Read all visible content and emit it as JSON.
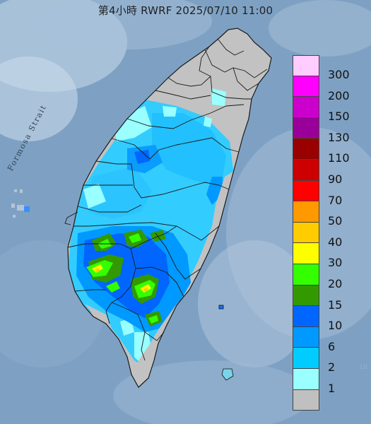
{
  "title": "第4小時  RWRF 2025/07/10 11:00",
  "strait_label": "Formosa Strait",
  "legend": {
    "colors": [
      "#ffccff",
      "#ff00ff",
      "#cc00cc",
      "#990099",
      "#990000",
      "#cc0000",
      "#ff0000",
      "#ff9900",
      "#ffcc00",
      "#ffff00",
      "#33ff00",
      "#339900",
      "#0066ff",
      "#0099ff",
      "#00ccff",
      "#99ffff",
      "#c0c0c0"
    ],
    "labels": [
      "300",
      "200",
      "150",
      "130",
      "110",
      "90",
      "70",
      "50",
      "40",
      "30",
      "20",
      "15",
      "10",
      "6",
      "2",
      "1"
    ]
  }
}
